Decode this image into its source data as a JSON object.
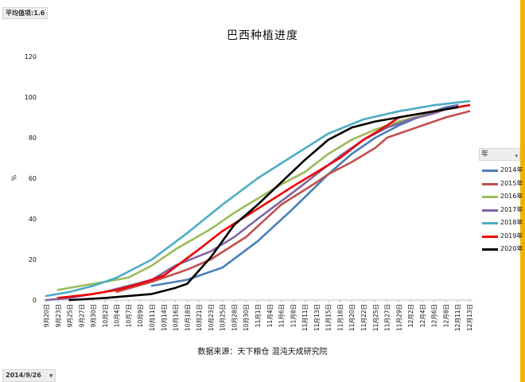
{
  "pivot": {
    "value_button": "平均值项:1.6",
    "date_filter": "2014/9/26",
    "legend_header": "年",
    "filter_icon": "filter-dropdown-icon",
    "dropdown_icon": "dropdown-arrow-icon"
  },
  "colors": {
    "accent_bar": "#f0b400"
  },
  "chart_data": {
    "type": "line",
    "title": "巴西种植进度",
    "ylabel": "%",
    "xlabel": "",
    "source": "数据来源：天下粮仓 混沌天成研究院",
    "ylim": [
      0,
      120
    ],
    "yticks": [
      0,
      20,
      40,
      60,
      80,
      100,
      120
    ],
    "grid": false,
    "legend_position": "right",
    "categories": [
      "9月20日",
      "9月23日",
      "9月25日",
      "9月27日",
      "9月30日",
      "10月2日",
      "10月4日",
      "10月7日",
      "10月9日",
      "10月11日",
      "10月14日",
      "10月16日",
      "10月18日",
      "10月21日",
      "10月23日",
      "10月25日",
      "10月28日",
      "10月30日",
      "11月1日",
      "11月4日",
      "11月6日",
      "11月8日",
      "11月11日",
      "11月13日",
      "11月15日",
      "11月18日",
      "11月20日",
      "11月22日",
      "11月25日",
      "11月27日",
      "11月29日",
      "12月2日",
      "12月4日",
      "12月6日",
      "12月8日",
      "12月11日",
      "12月13日"
    ],
    "series": [
      {
        "name": "2014年",
        "color": "#4a7ebb",
        "points": [
          [
            9,
            7
          ],
          [
            11,
            9
          ],
          [
            12,
            10
          ],
          [
            15,
            16
          ],
          [
            18,
            29
          ],
          [
            21,
            45
          ],
          [
            24,
            62
          ],
          [
            26,
            72
          ],
          [
            28,
            80
          ],
          [
            30,
            86
          ],
          [
            32,
            91
          ],
          [
            34,
            95
          ],
          [
            35,
            96
          ]
        ]
      },
      {
        "name": "2015年",
        "color": "#c0504d",
        "points": [
          [
            6,
            4
          ],
          [
            9,
            9
          ],
          [
            12,
            15
          ],
          [
            14,
            20
          ],
          [
            17,
            31
          ],
          [
            20,
            47
          ],
          [
            23,
            58
          ],
          [
            24,
            62
          ],
          [
            26,
            68
          ],
          [
            28,
            75
          ],
          [
            29,
            80
          ],
          [
            31,
            84
          ],
          [
            33,
            88
          ],
          [
            34,
            90
          ],
          [
            36,
            93
          ]
        ]
      },
      {
        "name": "2016年",
        "color": "#9bbb59",
        "points": [
          [
            1,
            5
          ],
          [
            3,
            7
          ],
          [
            5,
            9
          ],
          [
            7,
            11
          ],
          [
            9,
            17
          ],
          [
            11,
            25
          ],
          [
            14,
            35
          ],
          [
            16,
            43
          ],
          [
            18,
            50
          ],
          [
            20,
            57
          ],
          [
            22,
            63
          ],
          [
            24,
            72
          ],
          [
            26,
            79
          ],
          [
            28,
            84
          ],
          [
            30,
            88
          ],
          [
            32,
            91
          ],
          [
            34,
            94
          ],
          [
            35,
            96
          ]
        ]
      },
      {
        "name": "2017年",
        "color": "#8064a2",
        "points": [
          [
            0,
            0
          ],
          [
            2,
            1
          ],
          [
            5,
            4
          ],
          [
            9,
            10
          ],
          [
            11,
            17
          ],
          [
            14,
            24
          ],
          [
            16,
            31
          ],
          [
            18,
            40
          ],
          [
            21,
            53
          ],
          [
            23,
            62
          ],
          [
            25,
            71
          ],
          [
            27,
            79
          ],
          [
            29,
            85
          ],
          [
            31,
            89
          ],
          [
            33,
            92
          ],
          [
            35,
            96
          ]
        ]
      },
      {
        "name": "2018年",
        "color": "#4bacc6",
        "points": [
          [
            0,
            2
          ],
          [
            2,
            4
          ],
          [
            4,
            7
          ],
          [
            6,
            11
          ],
          [
            9,
            20
          ],
          [
            12,
            33
          ],
          [
            15,
            47
          ],
          [
            18,
            60
          ],
          [
            21,
            71
          ],
          [
            24,
            82
          ],
          [
            27,
            89
          ],
          [
            30,
            93
          ],
          [
            33,
            96
          ],
          [
            36,
            98
          ]
        ]
      },
      {
        "name": "2019年",
        "color": "#ee0000",
        "points": [
          [
            1,
            1
          ],
          [
            4,
            3
          ],
          [
            6,
            5
          ],
          [
            8,
            8
          ],
          [
            10,
            12
          ],
          [
            13,
            25
          ],
          [
            15,
            34
          ],
          [
            18,
            45
          ],
          [
            21,
            56
          ],
          [
            23,
            63
          ],
          [
            25,
            70
          ],
          [
            27,
            79
          ],
          [
            29,
            86
          ],
          [
            30,
            90
          ],
          [
            32,
            92
          ],
          [
            34,
            94
          ],
          [
            36,
            96
          ]
        ]
      },
      {
        "name": "2020年",
        "color": "#000000",
        "points": [
          [
            2,
            0
          ],
          [
            5,
            1
          ],
          [
            7,
            2
          ],
          [
            9,
            3
          ],
          [
            11,
            6
          ],
          [
            12,
            8
          ],
          [
            14,
            21
          ],
          [
            16,
            37
          ],
          [
            18,
            47
          ],
          [
            20,
            58
          ],
          [
            22,
            69
          ],
          [
            24,
            79
          ],
          [
            26,
            85
          ],
          [
            28,
            88
          ],
          [
            30,
            90
          ],
          [
            32,
            92
          ],
          [
            34,
            94
          ],
          [
            35,
            95
          ]
        ]
      }
    ]
  }
}
